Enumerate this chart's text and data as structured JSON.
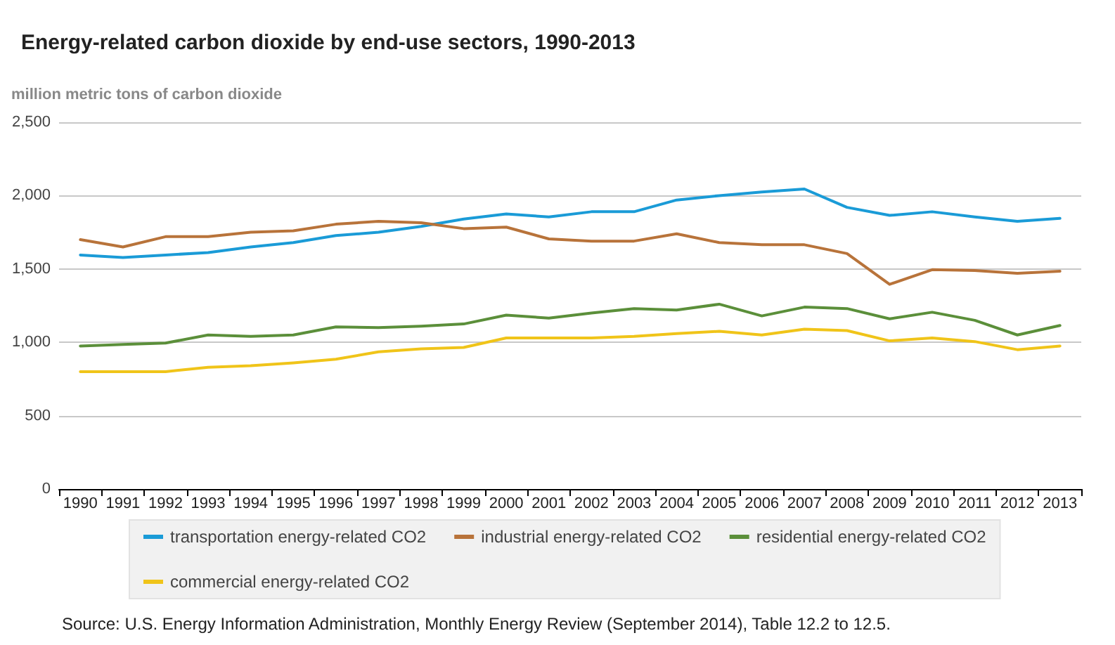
{
  "chart_data": {
    "type": "line",
    "title": "Energy-related carbon dioxide by end-use sectors, 1990-2013",
    "ylabel": "million metric tons of carbon dioxide",
    "categories": [
      "1990",
      "1991",
      "1992",
      "1993",
      "1994",
      "1995",
      "1996",
      "1997",
      "1998",
      "1999",
      "2000",
      "2001",
      "2002",
      "2003",
      "2004",
      "2005",
      "2006",
      "2007",
      "2008",
      "2009",
      "2010",
      "2011",
      "2012",
      "2013"
    ],
    "series": [
      {
        "name": "transportation energy-related CO2",
        "color": "#1a9bd7",
        "values": [
          1595,
          1578,
          1595,
          1612,
          1650,
          1680,
          1728,
          1750,
          1790,
          1840,
          1875,
          1855,
          1890,
          1890,
          1970,
          2000,
          2025,
          2045,
          1920,
          1865,
          1890,
          1855,
          1825,
          1845
        ]
      },
      {
        "name": "industrial energy-related CO2",
        "color": "#b8733a",
        "values": [
          1700,
          1650,
          1720,
          1720,
          1750,
          1760,
          1805,
          1825,
          1815,
          1775,
          1785,
          1705,
          1690,
          1690,
          1740,
          1680,
          1665,
          1665,
          1605,
          1395,
          1495,
          1490,
          1470,
          1485
        ]
      },
      {
        "name": "residential energy-related CO2",
        "color": "#5b8f3a",
        "values": [
          975,
          985,
          995,
          1050,
          1040,
          1050,
          1105,
          1100,
          1110,
          1125,
          1185,
          1165,
          1200,
          1230,
          1220,
          1260,
          1180,
          1240,
          1230,
          1160,
          1205,
          1150,
          1050,
          1115
        ]
      },
      {
        "name": "commercial energy-related CO2",
        "color": "#f0c419",
        "values": [
          800,
          800,
          800,
          830,
          840,
          860,
          885,
          935,
          955,
          965,
          1030,
          1030,
          1030,
          1040,
          1060,
          1075,
          1050,
          1090,
          1080,
          1010,
          1030,
          1005,
          950,
          975
        ]
      }
    ],
    "ylim": [
      0,
      2500
    ],
    "yticks": [
      {
        "value": 0,
        "label": "0"
      },
      {
        "value": 500,
        "label": "500"
      },
      {
        "value": 1000,
        "label": "1,000"
      },
      {
        "value": 1500,
        "label": "1,500"
      },
      {
        "value": 2000,
        "label": "2,000"
      },
      {
        "value": 2500,
        "label": "2,500"
      }
    ],
    "grid": "y",
    "legend": "bottom",
    "marker": "none",
    "line_style": "solid",
    "annotations": [
      "Source: U.S. Energy Information Administration, Monthly Energy Review (September 2014), Table 12.2 to 12.5."
    ]
  }
}
